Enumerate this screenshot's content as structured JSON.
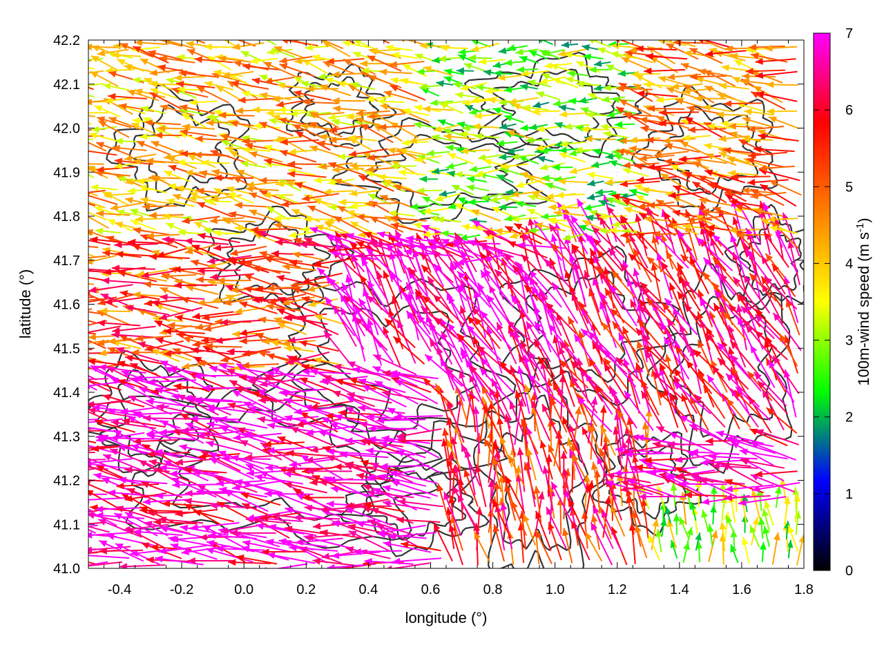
{
  "chart_data": {
    "type": "vector field",
    "xlabel": "longitude (°)",
    "ylabel": "latitude (°)",
    "xlim": [
      -0.5,
      1.8
    ],
    "ylim": [
      41.0,
      42.2
    ],
    "xticks": [
      -0.4,
      -0.2,
      0.0,
      0.2,
      0.4,
      0.6,
      0.8,
      1.0,
      1.2,
      1.4,
      1.6,
      1.8
    ],
    "yticks": [
      41.0,
      41.1,
      41.2,
      41.3,
      41.4,
      41.5,
      41.6,
      41.7,
      41.8,
      41.9,
      42.0,
      42.1,
      42.2
    ],
    "xtick_labels": [
      "-0.4",
      "-0.2",
      "0.0",
      "0.2",
      "0.4",
      "0.6",
      "0.8",
      "1.0",
      "1.2",
      "1.4",
      "1.6",
      "1.8"
    ],
    "ytick_labels": [
      "41.0",
      "41.1",
      "41.2",
      "41.3",
      "41.4",
      "41.5",
      "41.6",
      "41.7",
      "41.8",
      "41.9",
      "42.0",
      "42.1",
      "42.2"
    ],
    "grid": true,
    "colorbar": {
      "label_main": "100m-wind speed (m s",
      "label_sup": "-1",
      "label_end": ")",
      "range": [
        0,
        7
      ],
      "ticks": [
        0,
        1,
        2,
        3,
        4,
        5,
        6,
        7
      ],
      "tick_labels": [
        "0",
        "1",
        "2",
        "3",
        "4",
        "5",
        "6",
        "7"
      ],
      "stops": [
        "#000000",
        "#0000ff",
        "#00ff00",
        "#ffff00",
        "#ff8000",
        "#ff0000",
        "#ff00ff"
      ]
    },
    "contour_color": "#333333",
    "wind_regions": [
      {
        "lon": [
          -0.5,
          0.65
        ],
        "lat": [
          41.0,
          41.45
        ],
        "speed": 6.9,
        "dir_deg": 170
      },
      {
        "lon": [
          -0.5,
          0.35
        ],
        "lat": [
          41.45,
          41.75
        ],
        "speed": 5.2,
        "dir_deg": 175
      },
      {
        "lon": [
          0.35,
          1.05
        ],
        "lat": [
          41.35,
          41.7
        ],
        "speed": 6.8,
        "dir_deg": 120
      },
      {
        "lon": [
          1.05,
          1.8
        ],
        "lat": [
          41.3,
          41.75
        ],
        "speed": 6.2,
        "dir_deg": 120
      },
      {
        "lon": [
          0.65,
          1.3
        ],
        "lat": [
          41.0,
          41.35
        ],
        "speed": 5.6,
        "dir_deg": 100
      },
      {
        "lon": [
          1.3,
          1.8
        ],
        "lat": [
          41.0,
          41.15
        ],
        "speed": 3.2,
        "dir_deg": 95
      },
      {
        "lon": [
          -0.5,
          0.6
        ],
        "lat": [
          41.75,
          42.2
        ],
        "speed": 4.3,
        "dir_deg": 170
      },
      {
        "lon": [
          0.6,
          1.3
        ],
        "lat": [
          41.75,
          42.2
        ],
        "speed": 3.0,
        "dir_deg": 175
      },
      {
        "lon": [
          1.3,
          1.8
        ],
        "lat": [
          41.75,
          42.2
        ],
        "speed": 4.8,
        "dir_deg": 168
      }
    ]
  }
}
